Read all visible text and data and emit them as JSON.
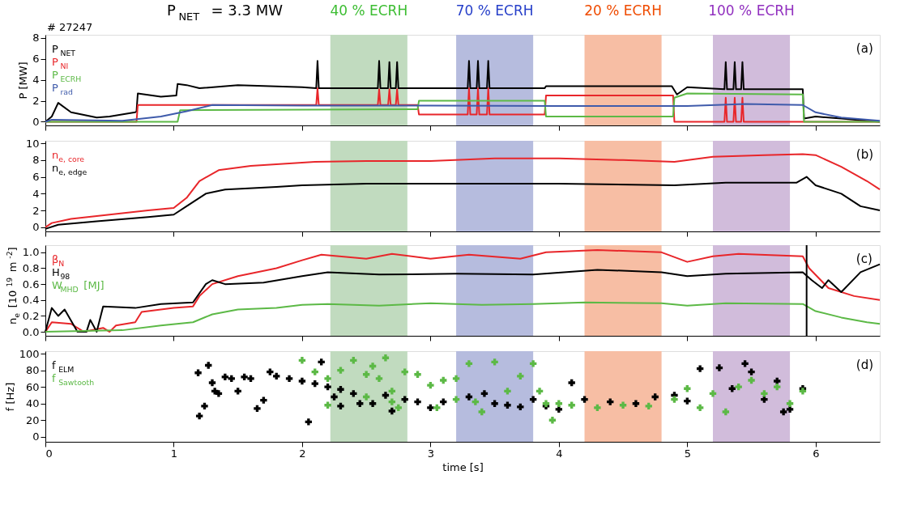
{
  "chart_data": [
    {
      "type": "line",
      "title": "P$_{NET}$ = 3.3 MW",
      "ylabel": "P [MW]",
      "annotations": [
        "(a)",
        "# 27247"
      ],
      "legend": "top left",
      "tick_labels": "y",
      "xlim": [
        0,
        6.5
      ],
      "xticks": [
        0,
        1,
        2,
        3,
        4,
        5,
        6
      ],
      "ylim": [
        -0.35,
        8.3
      ],
      "yticks": [
        0,
        2,
        4,
        6,
        8
      ],
      "bands": [
        {
          "axis": "x",
          "from": 2.22,
          "to": 2.82,
          "label": "40 % ECRH",
          "color": "#c1dbbf"
        },
        {
          "axis": "x",
          "from": 3.2,
          "to": 3.8,
          "label": "70 % ECRH",
          "color": "#b6bcde"
        },
        {
          "axis": "x",
          "from": 4.2,
          "to": 4.8,
          "label": "20 % ECRH",
          "color": "#f7bea4"
        },
        {
          "axis": "x",
          "from": 5.2,
          "to": 5.8,
          "label": "100 % ECRH",
          "color": "#d1bcdb"
        }
      ],
      "series": [
        {
          "name": "P$_{NET}$",
          "color": "#000000",
          "x": [
            0,
            0.05,
            0.1,
            0.2,
            0.4,
            0.5,
            0.7,
            0.71,
            0.72,
            0.9,
            1.02,
            1.03,
            1.1,
            1.2,
            1.5,
            2.0,
            2.11,
            2.12,
            2.13,
            2.59,
            2.6,
            2.61,
            2.67,
            2.68,
            2.69,
            2.73,
            2.74,
            2.75,
            3.29,
            3.3,
            3.31,
            3.36,
            3.37,
            3.38,
            3.44,
            3.45,
            3.46,
            3.89,
            3.9,
            4.5,
            4.88,
            4.92,
            5.0,
            5.29,
            5.3,
            5.31,
            5.36,
            5.37,
            5.38,
            5.42,
            5.43,
            5.44,
            5.9,
            5.91,
            6.0,
            6.2,
            6.4,
            6.5
          ],
          "values": [
            0,
            0.5,
            1.8,
            0.9,
            0.4,
            0.5,
            0.9,
            1.0,
            2.7,
            2.4,
            2.5,
            3.6,
            3.5,
            3.2,
            3.5,
            3.3,
            3.2,
            5.8,
            3.2,
            3.2,
            5.8,
            3.2,
            3.2,
            5.7,
            3.2,
            3.2,
            5.7,
            3.2,
            3.2,
            5.8,
            3.2,
            3.2,
            5.8,
            3.2,
            3.2,
            5.8,
            3.2,
            3.2,
            3.4,
            3.4,
            3.4,
            2.6,
            3.3,
            3.1,
            5.7,
            3.1,
            3.1,
            5.7,
            3.1,
            3.1,
            5.7,
            3.1,
            3.1,
            0.3,
            0.5,
            0.3,
            0.1,
            0
          ]
        },
        {
          "name": "P$_{NI}$",
          "color": "#e8262a",
          "x": [
            0,
            0.71,
            0.72,
            2.11,
            2.12,
            2.13,
            2.59,
            2.6,
            2.61,
            2.67,
            2.68,
            2.69,
            2.73,
            2.74,
            2.75,
            2.9,
            2.91,
            3.29,
            3.3,
            3.31,
            3.36,
            3.37,
            3.38,
            3.44,
            3.45,
            3.46,
            3.89,
            3.9,
            4.89,
            4.9,
            5.29,
            5.3,
            5.31,
            5.36,
            5.37,
            5.38,
            5.42,
            5.43,
            5.44,
            6.5
          ],
          "values": [
            0,
            0,
            1.6,
            1.6,
            3.2,
            1.6,
            1.6,
            3.1,
            1.6,
            1.6,
            3.1,
            1.6,
            1.6,
            3.1,
            1.6,
            1.6,
            0.7,
            0.7,
            3.2,
            0.7,
            0.7,
            3.2,
            0.7,
            0.7,
            3.2,
            0.7,
            0.7,
            2.5,
            2.5,
            0,
            0,
            2.3,
            0,
            0,
            2.3,
            0,
            0,
            2.3,
            0,
            0
          ]
        },
        {
          "name": "P$_{ECRH}$",
          "color": "#5cb946",
          "x": [
            0,
            1.03,
            1.05,
            2.9,
            2.91,
            3.89,
            3.9,
            4.89,
            4.9,
            5.0,
            5.9,
            5.91,
            6.5
          ],
          "values": [
            0,
            0,
            1.1,
            1.2,
            2.0,
            2.0,
            0.5,
            0.5,
            2.3,
            2.7,
            2.6,
            0,
            0
          ]
        },
        {
          "name": "P$_{rad}$",
          "color": "#3f5bab",
          "x": [
            0,
            0.05,
            0.6,
            0.9,
            1.1,
            1.3,
            2.0,
            3.0,
            4.0,
            5.0,
            5.45,
            5.9,
            6.0,
            6.2,
            6.5
          ],
          "values": [
            0,
            0.2,
            0.1,
            0.5,
            1.0,
            1.6,
            1.55,
            1.55,
            1.5,
            1.5,
            1.7,
            1.6,
            0.9,
            0.4,
            0.1
          ]
        }
      ]
    },
    {
      "type": "line",
      "annotations": [
        "(b)"
      ],
      "legend": "top left",
      "tick_labels": "y",
      "xlim": [
        0,
        6.5
      ],
      "xticks": [
        0,
        1,
        2,
        3,
        4,
        5,
        6
      ],
      "ylim": [
        -0.5,
        10.3
      ],
      "yticks": [
        0,
        2,
        4,
        6,
        8,
        10
      ],
      "bands": [
        {
          "axis": "x",
          "from": 2.22,
          "to": 2.82,
          "color": "#c1dbbf"
        },
        {
          "axis": "x",
          "from": 3.2,
          "to": 3.8,
          "color": "#b6bcde"
        },
        {
          "axis": "x",
          "from": 4.2,
          "to": 4.8,
          "color": "#f7bea4"
        },
        {
          "axis": "x",
          "from": 5.2,
          "to": 5.8,
          "color": "#d1bcdb"
        }
      ],
      "series": [
        {
          "name": "n$_{e, core}$",
          "color": "#e8262a",
          "x": [
            0,
            0.05,
            0.2,
            0.5,
            0.8,
            1.0,
            1.1,
            1.2,
            1.35,
            1.6,
            2.1,
            2.5,
            3.0,
            3.5,
            4.0,
            4.5,
            4.9,
            5.2,
            5.6,
            5.9,
            6.0,
            6.2,
            6.4,
            6.5
          ],
          "values": [
            0,
            0.5,
            1.0,
            1.5,
            2.0,
            2.3,
            3.5,
            5.5,
            6.8,
            7.3,
            7.8,
            7.9,
            7.9,
            8.2,
            8.2,
            8.0,
            7.8,
            8.4,
            8.6,
            8.7,
            8.6,
            7.2,
            5.5,
            4.5
          ]
        },
        {
          "name": "n$_{e, edge}$",
          "color": "#000000",
          "x": [
            0,
            0.1,
            0.4,
            0.8,
            1.0,
            1.1,
            1.25,
            1.4,
            1.8,
            2.0,
            2.5,
            4.0,
            4.9,
            5.3,
            5.85,
            5.93,
            6.0,
            6.2,
            6.35,
            6.5
          ],
          "values": [
            -0.2,
            0.3,
            0.7,
            1.2,
            1.5,
            2.5,
            4.0,
            4.5,
            4.8,
            5.0,
            5.2,
            5.2,
            5.0,
            5.3,
            5.3,
            6.0,
            5.0,
            4.0,
            2.5,
            2.0
          ]
        }
      ]
    },
    {
      "type": "line",
      "ylabel": "n$_{e}$ [10$^{19}$ m$^{-2}$]",
      "annotations": [
        "(c)"
      ],
      "legend": "top left",
      "tick_labels": "y",
      "xlim": [
        0,
        6.5
      ],
      "xticks": [
        0,
        1,
        2,
        3,
        4,
        5,
        6
      ],
      "ylim": [
        -0.05,
        1.09
      ],
      "yticks": [
        {
          "value": 0,
          "label": "0.0"
        },
        0.2,
        0.4,
        0.6,
        0.8,
        {
          "value": 1,
          "label": "1.0"
        }
      ],
      "bands": [
        {
          "axis": "x",
          "from": 2.22,
          "to": 2.82,
          "color": "#c1dbbf"
        },
        {
          "axis": "x",
          "from": 3.2,
          "to": 3.8,
          "color": "#b6bcde"
        },
        {
          "axis": "x",
          "from": 4.2,
          "to": 4.8,
          "color": "#f7bea4"
        },
        {
          "axis": "x",
          "from": 5.2,
          "to": 5.8,
          "color": "#d1bcdb"
        }
      ],
      "ref_lines": [
        {
          "axis": "x",
          "value": 5.93,
          "color": "#000000"
        }
      ],
      "series": [
        {
          "name": "β$_{N}$",
          "color": "#e8262a",
          "x": [
            0,
            0.05,
            0.2,
            0.3,
            0.45,
            0.5,
            0.55,
            0.7,
            0.75,
            1.0,
            1.15,
            1.2,
            1.3,
            1.5,
            1.8,
            2.0,
            2.15,
            2.5,
            2.7,
            3.0,
            3.3,
            3.7,
            3.9,
            4.3,
            4.8,
            5.0,
            5.2,
            5.4,
            5.9,
            5.95,
            6.1,
            6.3,
            6.5
          ],
          "values": [
            0,
            0.12,
            0.1,
            0,
            0.05,
            0,
            0.08,
            0.12,
            0.25,
            0.3,
            0.32,
            0.45,
            0.6,
            0.7,
            0.8,
            0.9,
            0.97,
            0.92,
            0.98,
            0.92,
            0.97,
            0.92,
            1.0,
            1.03,
            1.0,
            0.88,
            0.95,
            0.98,
            0.95,
            0.8,
            0.55,
            0.45,
            0.4
          ]
        },
        {
          "name": "H$_{98}$",
          "color": "#000000",
          "x": [
            0,
            0.05,
            0.1,
            0.15,
            0.25,
            0.32,
            0.35,
            0.4,
            0.45,
            0.7,
            0.9,
            1.15,
            1.25,
            1.3,
            1.4,
            1.7,
            2.0,
            2.2,
            2.6,
            3.2,
            3.8,
            4.3,
            4.8,
            5.0,
            5.3,
            5.9,
            5.97,
            6.05,
            6.1,
            6.2,
            6.35,
            6.5
          ],
          "values": [
            0,
            0.3,
            0.2,
            0.28,
            0,
            0,
            0.15,
            0,
            0.32,
            0.3,
            0.35,
            0.37,
            0.6,
            0.65,
            0.6,
            0.62,
            0.7,
            0.75,
            0.72,
            0.73,
            0.72,
            0.78,
            0.75,
            0.7,
            0.73,
            0.75,
            0.65,
            0.55,
            0.65,
            0.5,
            0.75,
            0.85
          ]
        },
        {
          "name": "W$_{MHD}$ [MJ]",
          "color": "#5cb946",
          "x": [
            0,
            0.6,
            0.9,
            1.15,
            1.3,
            1.5,
            1.8,
            2.0,
            2.2,
            2.6,
            3.0,
            3.4,
            3.8,
            4.2,
            4.8,
            5.0,
            5.3,
            5.9,
            6.0,
            6.2,
            6.4,
            6.5
          ],
          "values": [
            0,
            0.02,
            0.08,
            0.12,
            0.22,
            0.28,
            0.3,
            0.34,
            0.35,
            0.33,
            0.36,
            0.34,
            0.35,
            0.37,
            0.36,
            0.33,
            0.36,
            0.35,
            0.26,
            0.18,
            0.12,
            0.1
          ]
        }
      ]
    },
    {
      "type": "scatter",
      "xlabel": "time [s]",
      "ylabel": "f [Hz]",
      "annotations": [
        "(d)"
      ],
      "legend": "top left",
      "marker": "cross",
      "xlim": [
        0,
        6.5
      ],
      "xticks": [
        0,
        1,
        2,
        3,
        4,
        5,
        6
      ],
      "ylim": [
        -6,
        103
      ],
      "yticks": [
        0,
        20,
        40,
        60,
        80,
        100
      ],
      "bands": [
        {
          "axis": "x",
          "from": 2.22,
          "to": 2.82,
          "color": "#c1dbbf"
        },
        {
          "axis": "x",
          "from": 3.2,
          "to": 3.8,
          "color": "#b6bcde"
        },
        {
          "axis": "x",
          "from": 4.2,
          "to": 4.8,
          "color": "#f7bea4"
        },
        {
          "axis": "x",
          "from": 5.2,
          "to": 5.8,
          "color": "#d1bcdb"
        }
      ],
      "series": [
        {
          "name": "f$_{ELM}$",
          "color": "#000000",
          "x": [
            1.19,
            1.2,
            1.24,
            1.27,
            1.3,
            1.32,
            1.35,
            1.4,
            1.45,
            1.5,
            1.55,
            1.6,
            1.65,
            1.7,
            1.75,
            1.8,
            1.9,
            2.0,
            2.1,
            2.2,
            2.3,
            2.05,
            2.15,
            2.25,
            2.3,
            2.4,
            2.45,
            2.55,
            2.65,
            2.7,
            2.8,
            2.9,
            3.0,
            3.1,
            3.3,
            3.42,
            3.5,
            3.6,
            3.7,
            3.8,
            3.9,
            4.0,
            4.1,
            4.2,
            4.4,
            4.6,
            4.75,
            4.9,
            5.0,
            5.1,
            5.25,
            5.35,
            5.45,
            5.5,
            5.6,
            5.7,
            5.75,
            5.8,
            5.9
          ],
          "values": [
            77,
            25,
            37,
            86,
            65,
            55,
            52,
            72,
            70,
            55,
            72,
            70,
            34,
            44,
            78,
            73,
            70,
            67,
            64,
            60,
            57,
            18,
            90,
            48,
            37,
            52,
            40,
            40,
            50,
            31,
            45,
            42,
            35,
            42,
            48,
            52,
            40,
            38,
            36,
            45,
            37,
            33,
            65,
            45,
            42,
            40,
            48,
            50,
            43,
            82,
            83,
            58,
            88,
            78,
            45,
            67,
            30,
            33,
            58
          ]
        },
        {
          "name": "f$_{Sawtooth}$",
          "color": "#5cb946",
          "x": [
            2.0,
            2.1,
            2.2,
            2.3,
            2.4,
            2.5,
            2.55,
            2.6,
            2.65,
            2.7,
            2.8,
            2.9,
            3.0,
            3.1,
            3.2,
            2.2,
            2.5,
            2.7,
            2.75,
            3.05,
            3.2,
            3.3,
            3.35,
            3.4,
            3.5,
            3.6,
            3.7,
            3.8,
            3.85,
            3.9,
            3.95,
            4.0,
            4.1,
            4.3,
            4.5,
            4.7,
            4.9,
            5.0,
            5.1,
            5.2,
            5.3,
            5.4,
            5.5,
            5.6,
            5.7,
            5.8,
            5.9
          ],
          "values": [
            92,
            78,
            70,
            80,
            92,
            75,
            85,
            70,
            95,
            55,
            78,
            75,
            62,
            68,
            70,
            38,
            48,
            42,
            35,
            35,
            45,
            88,
            42,
            30,
            90,
            55,
            73,
            88,
            55,
            40,
            20,
            40,
            38,
            35,
            38,
            37,
            45,
            58,
            35,
            52,
            30,
            60,
            68,
            52,
            60,
            40,
            55
          ]
        }
      ]
    }
  ]
}
